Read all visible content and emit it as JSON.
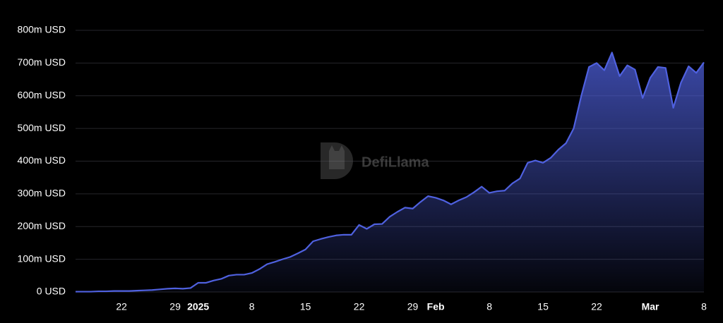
{
  "chart_data": {
    "type": "area",
    "watermark": "DefiLlama",
    "color": "#4f61e0",
    "grid": true,
    "categories": [
      null,
      null,
      null,
      null,
      null,
      null,
      "22",
      null,
      null,
      null,
      null,
      null,
      null,
      "29",
      null,
      null,
      "2025",
      null,
      null,
      null,
      null,
      null,
      null,
      "8",
      null,
      null,
      null,
      null,
      null,
      null,
      "15",
      null,
      null,
      null,
      null,
      null,
      null,
      "22",
      null,
      null,
      null,
      null,
      null,
      null,
      "29",
      null,
      null,
      "Feb",
      null,
      null,
      null,
      null,
      null,
      null,
      "8",
      null,
      null,
      null,
      null,
      null,
      null,
      "15",
      null,
      null,
      null,
      null,
      null,
      null,
      "22",
      null,
      null,
      null,
      null,
      null,
      null,
      "Mar",
      null,
      null,
      null,
      null,
      null,
      null,
      "8"
    ],
    "values": [
      1,
      1,
      1,
      2,
      2,
      3,
      3,
      3,
      4,
      5,
      6,
      8,
      10,
      11,
      10,
      12,
      28,
      28,
      35,
      40,
      50,
      53,
      53,
      58,
      70,
      85,
      92,
      100,
      107,
      118,
      130,
      155,
      162,
      168,
      173,
      175,
      175,
      205,
      193,
      207,
      208,
      230,
      245,
      258,
      255,
      275,
      293,
      288,
      280,
      268,
      280,
      290,
      305,
      322,
      303,
      308,
      310,
      332,
      347,
      395,
      402,
      395,
      410,
      435,
      455,
      500,
      600,
      688,
      700,
      678,
      732,
      660,
      693,
      680,
      593,
      655,
      688,
      685,
      563,
      640,
      690,
      670,
      702
    ],
    "ylim": [
      0,
      800
    ],
    "yticks": [
      {
        "value": 0,
        "label": "0 USD"
      },
      {
        "value": 100,
        "label": "100m USD"
      },
      {
        "value": 200,
        "label": "200m USD"
      },
      {
        "value": 300,
        "label": "300m USD"
      },
      {
        "value": 400,
        "label": "400m USD"
      },
      {
        "value": 500,
        "label": "500m USD"
      },
      {
        "value": 600,
        "label": "600m USD"
      },
      {
        "value": 700,
        "label": "700m USD"
      },
      {
        "value": 800,
        "label": "800m USD"
      }
    ]
  }
}
